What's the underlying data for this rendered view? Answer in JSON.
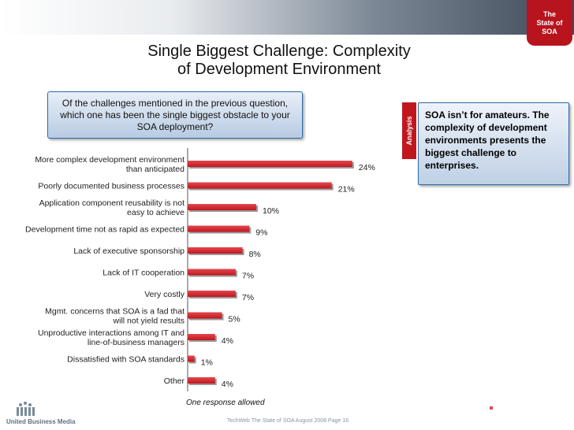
{
  "badge": {
    "line1": "The",
    "line2": "State of",
    "line3": "SOA"
  },
  "title": {
    "line1": "Single Biggest Challenge: Complexity",
    "line2": "of Development Environment"
  },
  "question": "Of the challenges mentioned in the previous question, which one has been the single biggest obstacle to your SOA deployment?",
  "analysis": {
    "tab_label": "Analysis",
    "text": "SOA isn’t for amateurs. The complexity of development environments presents the biggest challenge to enterprises."
  },
  "footnote": "One response allowed",
  "footer": {
    "logo_text": "United Business Media",
    "page_text": "TechWeb  The State of SOA  August 2008  Page 16"
  },
  "colors": {
    "bar": "#c0171f",
    "accent": "#b8141d"
  },
  "chart_data": {
    "type": "bar",
    "orientation": "horizontal",
    "categories": [
      [
        "More complex development environment",
        "than anticipated"
      ],
      [
        "Poorly documented business processes"
      ],
      [
        "Application component reusability is not",
        "easy to achieve"
      ],
      [
        "Development time not as rapid as expected"
      ],
      [
        "Lack of executive sponsorship"
      ],
      [
        "Lack of IT cooperation"
      ],
      [
        "Very costly"
      ],
      [
        "Mgmt. concerns that SOA is a fad that",
        "will not yield results"
      ],
      [
        "Unproductive interactions among IT and",
        "line-of-business managers"
      ],
      [
        "Dissatisfied with SOA standards"
      ],
      [
        "Other"
      ]
    ],
    "values": [
      24,
      21,
      10,
      9,
      8,
      7,
      7,
      5,
      4,
      1,
      4
    ],
    "value_labels": [
      "24%",
      "21%",
      "10%",
      "9%",
      "8%",
      "7%",
      "7%",
      "5%",
      "4%",
      "1%",
      "4%"
    ],
    "xlim": [
      0,
      26
    ],
    "title": "",
    "xlabel": "",
    "ylabel": ""
  }
}
